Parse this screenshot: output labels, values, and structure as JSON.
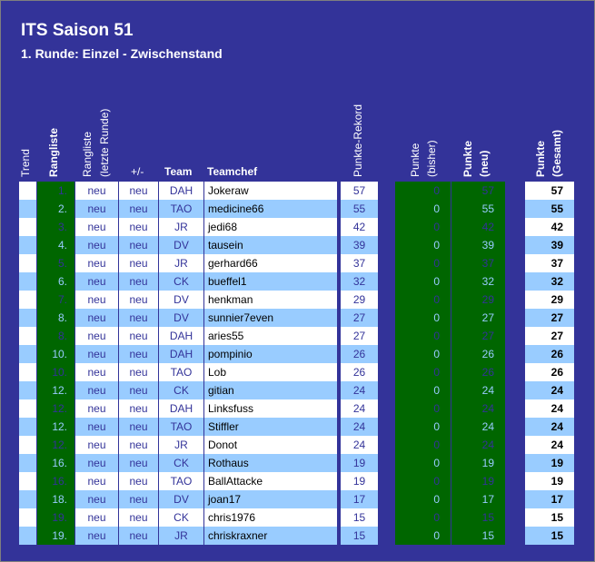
{
  "title": "ITS Saison 51",
  "subtitle": "1. Runde: Einzel - Zwischenstand",
  "headers": {
    "trend": "Trend",
    "rangliste": "Rangliste",
    "rangliste_alt_1": "Rangliste",
    "rangliste_alt_2": "(letzte Runde)",
    "plusminus": "+/-",
    "team": "Team",
    "teamchef": "Teamchef",
    "rekord": "Punkte-Rekord",
    "bisher_1": "Punkte",
    "bisher_2": "(bisher)",
    "neu_1": "Punkte",
    "neu_2": "(neu)",
    "gesamt_1": "Punkte",
    "gesamt_2": "(Gesamt)"
  },
  "colors": {
    "background": "#333399",
    "green": "#006600",
    "light_blue": "#99ccff",
    "white": "#ffffff",
    "text_dark_blue": "#333399"
  },
  "rows": [
    {
      "rank": "1.",
      "prev": "neu",
      "pm": "neu",
      "team": "DAH",
      "chef": "Jokeraw",
      "rekord": "57",
      "bisher": "0",
      "neu": "57",
      "gesamt": "57"
    },
    {
      "rank": "2.",
      "prev": "neu",
      "pm": "neu",
      "team": "TAO",
      "chef": "medicine66",
      "rekord": "55",
      "bisher": "0",
      "neu": "55",
      "gesamt": "55"
    },
    {
      "rank": "3.",
      "prev": "neu",
      "pm": "neu",
      "team": "JR",
      "chef": "jedi68",
      "rekord": "42",
      "bisher": "0",
      "neu": "42",
      "gesamt": "42"
    },
    {
      "rank": "4.",
      "prev": "neu",
      "pm": "neu",
      "team": "DV",
      "chef": "tausein",
      "rekord": "39",
      "bisher": "0",
      "neu": "39",
      "gesamt": "39"
    },
    {
      "rank": "5.",
      "prev": "neu",
      "pm": "neu",
      "team": "JR",
      "chef": "gerhard66",
      "rekord": "37",
      "bisher": "0",
      "neu": "37",
      "gesamt": "37"
    },
    {
      "rank": "6.",
      "prev": "neu",
      "pm": "neu",
      "team": "CK",
      "chef": "bueffel1",
      "rekord": "32",
      "bisher": "0",
      "neu": "32",
      "gesamt": "32"
    },
    {
      "rank": "7.",
      "prev": "neu",
      "pm": "neu",
      "team": "DV",
      "chef": "henkman",
      "rekord": "29",
      "bisher": "0",
      "neu": "29",
      "gesamt": "29"
    },
    {
      "rank": "8.",
      "prev": "neu",
      "pm": "neu",
      "team": "DV",
      "chef": "sunnier7even",
      "rekord": "27",
      "bisher": "0",
      "neu": "27",
      "gesamt": "27"
    },
    {
      "rank": "8.",
      "prev": "neu",
      "pm": "neu",
      "team": "DAH",
      "chef": "aries55",
      "rekord": "27",
      "bisher": "0",
      "neu": "27",
      "gesamt": "27"
    },
    {
      "rank": "10.",
      "prev": "neu",
      "pm": "neu",
      "team": "DAH",
      "chef": "pompinio",
      "rekord": "26",
      "bisher": "0",
      "neu": "26",
      "gesamt": "26"
    },
    {
      "rank": "10.",
      "prev": "neu",
      "pm": "neu",
      "team": "TAO",
      "chef": "Lob",
      "rekord": "26",
      "bisher": "0",
      "neu": "26",
      "gesamt": "26"
    },
    {
      "rank": "12.",
      "prev": "neu",
      "pm": "neu",
      "team": "CK",
      "chef": "gitian",
      "rekord": "24",
      "bisher": "0",
      "neu": "24",
      "gesamt": "24"
    },
    {
      "rank": "12.",
      "prev": "neu",
      "pm": "neu",
      "team": "DAH",
      "chef": "Linksfuss",
      "rekord": "24",
      "bisher": "0",
      "neu": "24",
      "gesamt": "24"
    },
    {
      "rank": "12.",
      "prev": "neu",
      "pm": "neu",
      "team": "TAO",
      "chef": "Stiffler",
      "rekord": "24",
      "bisher": "0",
      "neu": "24",
      "gesamt": "24"
    },
    {
      "rank": "12.",
      "prev": "neu",
      "pm": "neu",
      "team": "JR",
      "chef": "Donot",
      "rekord": "24",
      "bisher": "0",
      "neu": "24",
      "gesamt": "24"
    },
    {
      "rank": "16.",
      "prev": "neu",
      "pm": "neu",
      "team": "CK",
      "chef": "Rothaus",
      "rekord": "19",
      "bisher": "0",
      "neu": "19",
      "gesamt": "19"
    },
    {
      "rank": "16.",
      "prev": "neu",
      "pm": "neu",
      "team": "TAO",
      "chef": "BallAttacke",
      "rekord": "19",
      "bisher": "0",
      "neu": "19",
      "gesamt": "19"
    },
    {
      "rank": "18.",
      "prev": "neu",
      "pm": "neu",
      "team": "DV",
      "chef": "joan17",
      "rekord": "17",
      "bisher": "0",
      "neu": "17",
      "gesamt": "17"
    },
    {
      "rank": "19.",
      "prev": "neu",
      "pm": "neu",
      "team": "CK",
      "chef": "chris1976",
      "rekord": "15",
      "bisher": "0",
      "neu": "15",
      "gesamt": "15"
    },
    {
      "rank": "19.",
      "prev": "neu",
      "pm": "neu",
      "team": "JR",
      "chef": "chriskraxner",
      "rekord": "15",
      "bisher": "0",
      "neu": "15",
      "gesamt": "15"
    }
  ]
}
